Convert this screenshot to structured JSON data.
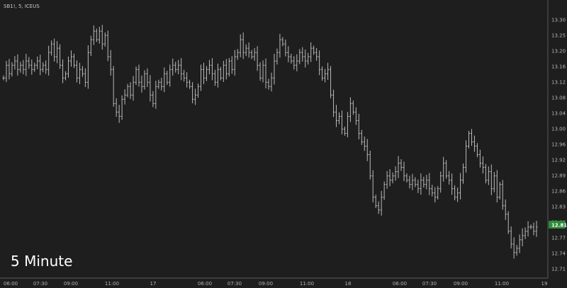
{
  "header": {
    "symbol_line": "SB1!, 5, ICEUS"
  },
  "overlay": {
    "label": "5 Minute"
  },
  "colors": {
    "background": "#1e1e1e",
    "bar": "#b9b9b9",
    "axis_line": "#5a5a5a",
    "last_price_badge": "#2e8b3a"
  },
  "chart_data": {
    "type": "ohlc",
    "title": "SB1!, 5, ICEUS",
    "interval": "5 Minute",
    "grid": false,
    "yaxis_position": "right",
    "ylim": [
      12.69,
      13.32
    ],
    "y_ticks": [
      "13.30",
      "13.25",
      "13.20",
      "13.16",
      "13.12",
      "13.08",
      "13.04",
      "13.00",
      "12.96",
      "12.92",
      "12.89",
      "12.86",
      "12.83",
      "12.80",
      "12.77",
      "12.74",
      "12.71"
    ],
    "x_ticks": [
      "06:00",
      "07:30",
      "09:00",
      "11:00",
      "17",
      "06:00",
      "07:30",
      "09:00",
      "11:00",
      "18",
      "06:00",
      "07:30",
      "09:00",
      "11:00",
      "19"
    ],
    "last_price": "12.81",
    "closes": [
      13.16,
      13.19,
      13.17,
      13.19,
      13.2,
      13.18,
      13.19,
      13.18,
      13.2,
      13.19,
      13.18,
      13.19,
      13.2,
      13.18,
      13.19,
      13.18,
      13.22,
      13.24,
      13.21,
      13.23,
      13.19,
      13.16,
      13.17,
      13.2,
      13.21,
      13.19,
      13.16,
      13.18,
      13.17,
      13.15,
      13.22,
      13.25,
      13.27,
      13.25,
      13.27,
      13.24,
      13.26,
      13.21,
      13.18,
      13.1,
      13.08,
      13.07,
      13.11,
      13.12,
      13.14,
      13.12,
      13.15,
      13.18,
      13.15,
      13.14,
      13.17,
      13.15,
      13.12,
      13.1,
      13.14,
      13.15,
      13.14,
      13.17,
      13.15,
      13.18,
      13.19,
      13.18,
      13.19,
      13.17,
      13.16,
      13.15,
      13.14,
      13.11,
      13.12,
      13.14,
      13.18,
      13.16,
      13.18,
      13.19,
      13.17,
      13.15,
      13.18,
      13.16,
      13.19,
      13.17,
      13.2,
      13.18,
      13.21,
      13.22,
      13.25,
      13.22,
      13.23,
      13.22,
      13.21,
      13.22,
      13.19,
      13.16,
      13.19,
      13.15,
      13.14,
      13.16,
      13.2,
      13.22,
      13.25,
      13.24,
      13.22,
      13.21,
      13.2,
      13.19,
      13.2,
      13.22,
      13.21,
      13.2,
      13.21,
      13.23,
      13.22,
      13.21,
      13.18,
      13.16,
      13.17,
      13.18,
      13.12,
      13.08,
      13.06,
      13.07,
      13.04,
      13.03,
      13.07,
      13.1,
      13.08,
      13.06,
      13.03,
      13.01,
      13.0,
      12.98,
      12.93,
      12.88,
      12.86,
      12.85,
      12.88,
      12.91,
      12.93,
      12.92,
      12.93,
      12.94,
      12.96,
      12.95,
      12.93,
      12.92,
      12.91,
      12.92,
      12.91,
      12.9,
      12.92,
      12.91,
      12.92,
      12.9,
      12.89,
      12.88,
      12.9,
      12.93,
      12.96,
      12.93,
      12.92,
      12.9,
      12.88,
      12.89,
      12.92,
      12.95,
      13.0,
      13.03,
      13.01,
      13.0,
      12.98,
      12.96,
      12.95,
      12.92,
      12.94,
      12.9,
      12.93,
      12.88,
      12.91,
      12.86,
      12.84,
      12.8,
      12.77,
      12.75,
      12.76,
      12.78,
      12.79,
      12.8,
      12.81,
      12.81,
      12.8,
      12.81
    ]
  }
}
